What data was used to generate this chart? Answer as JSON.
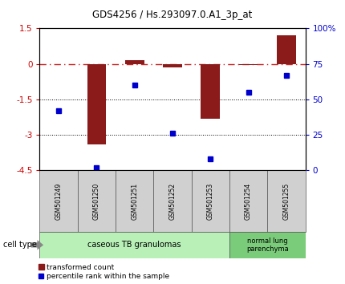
{
  "title": "GDS4256 / Hs.293097.0.A1_3p_at",
  "samples": [
    "GSM501249",
    "GSM501250",
    "GSM501251",
    "GSM501252",
    "GSM501253",
    "GSM501254",
    "GSM501255"
  ],
  "red_values": [
    0.0,
    -3.4,
    0.15,
    -0.15,
    -2.3,
    -0.05,
    1.2
  ],
  "blue_values": [
    42,
    2,
    60,
    26,
    8,
    55,
    67
  ],
  "ylim_left": [
    -4.5,
    1.5
  ],
  "ylim_right": [
    0,
    100
  ],
  "yticks_left": [
    1.5,
    0,
    -1.5,
    -3.0,
    -4.5
  ],
  "ytick_labels_left": [
    "1.5",
    "0",
    "-1.5",
    "-3",
    "-4.5"
  ],
  "yticks_right": [
    100,
    75,
    50,
    25,
    0
  ],
  "ytick_labels_right": [
    "100%",
    "75",
    "50",
    "25",
    "0"
  ],
  "hlines": [
    -1.5,
    -3.0
  ],
  "cell_type_groups": [
    {
      "label": "caseous TB granulomas",
      "samples": [
        0,
        1,
        2,
        3,
        4
      ],
      "color": "#b8f0b8"
    },
    {
      "label": "normal lung\nparenchyma",
      "samples": [
        5,
        6
      ],
      "color": "#7acc7a"
    }
  ],
  "bar_color": "#8b1a1a",
  "marker_color": "#0000cd",
  "bg_color": "#ffffff",
  "tick_color_left": "#cc0000",
  "tick_color_right": "#0000cd",
  "legend_red_label": "transformed count",
  "legend_blue_label": "percentile rank within the sample",
  "cell_type_label": "cell type",
  "sample_box_color": "#d0d0d0"
}
